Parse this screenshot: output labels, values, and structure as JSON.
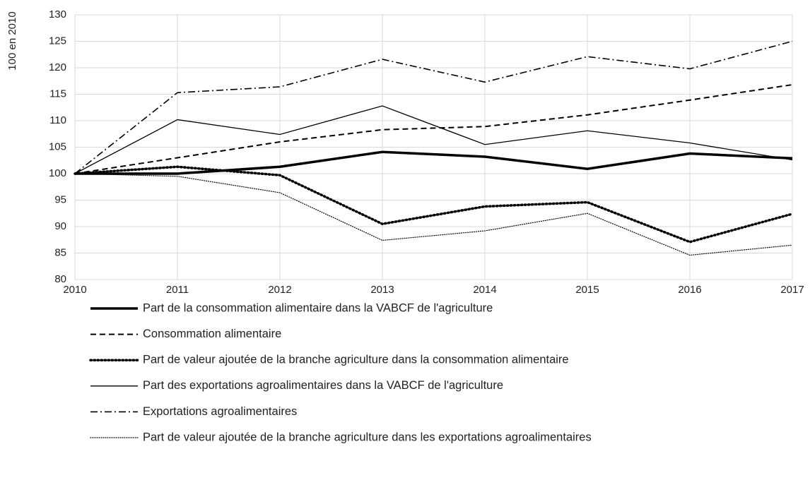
{
  "chart_data": {
    "type": "line",
    "y_label": "100 en 2010",
    "x": [
      2010,
      2011,
      2012,
      2013,
      2014,
      2015,
      2016,
      2017
    ],
    "xlim": [
      2010,
      2017
    ],
    "xticks": [
      2010,
      2011,
      2012,
      2013,
      2014,
      2015,
      2016,
      2017
    ],
    "ylim": [
      80,
      130
    ],
    "yticks": [
      80,
      85,
      90,
      95,
      100,
      105,
      110,
      115,
      120,
      125,
      130
    ],
    "grid": true,
    "legend": "bottom",
    "series": [
      {
        "name": "Part de la consommation alimentaire dans la VABCF de l'agriculture",
        "color": "#000000",
        "style": "solid",
        "linewidth": 3.5,
        "values": [
          100,
          100,
          101.3,
          104.1,
          103.2,
          100.9,
          103.8,
          102.9
        ]
      },
      {
        "name": "Consommation alimentaire",
        "color": "#000000",
        "style": "dashed",
        "linewidth": 2,
        "values": [
          100,
          103,
          106,
          108.3,
          108.9,
          111.1,
          113.9,
          116.8
        ]
      },
      {
        "name": "Part de valeur ajoutée de la branche agriculture dans la consommation alimentaire",
        "color": "#000000",
        "style": "dotted",
        "linewidth": 3.5,
        "values": [
          100,
          101.3,
          99.7,
          90.5,
          93.8,
          94.6,
          87.1,
          92.4
        ]
      },
      {
        "name": "Part des exportations agroalimentaires dans la VABCF de l'agriculture",
        "color": "#000000",
        "style": "solid",
        "linewidth": 1.3,
        "values": [
          100,
          110.2,
          107.4,
          112.8,
          105.5,
          108.1,
          105.8,
          102.6
        ]
      },
      {
        "name": "Exportations agroalimentaires",
        "color": "#000000",
        "style": "dashdot",
        "linewidth": 1.6,
        "values": [
          100,
          115.3,
          116.4,
          121.6,
          117.3,
          122.1,
          119.8,
          125
        ]
      },
      {
        "name": "Part de valeur ajoutée de la branche agriculture dans les exportations agroalimentaires",
        "color": "#000000",
        "style": "dotted",
        "linewidth": 1.2,
        "values": [
          100,
          99.5,
          96.4,
          87.4,
          89.2,
          92.5,
          84.6,
          86.5
        ]
      }
    ]
  }
}
